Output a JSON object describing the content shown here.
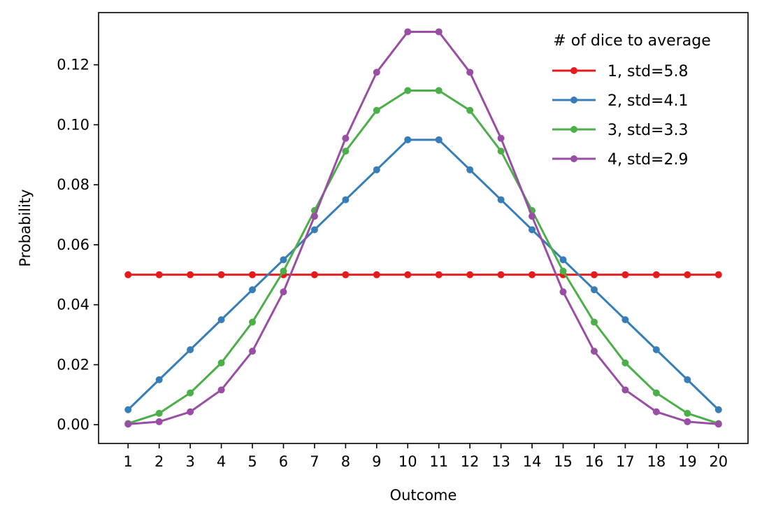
{
  "chart_data": {
    "type": "line",
    "title": "",
    "xlabel": "Outcome",
    "ylabel": "Probability",
    "x": [
      1,
      2,
      3,
      4,
      5,
      6,
      7,
      8,
      9,
      10,
      11,
      12,
      13,
      14,
      15,
      16,
      17,
      18,
      19,
      20
    ],
    "xlim": [
      0.05,
      20.95
    ],
    "ylim": [
      -0.00625,
      0.1374
    ],
    "yticks": [
      0.0,
      0.02,
      0.04,
      0.06,
      0.08,
      0.1,
      0.12
    ],
    "ytick_labels": [
      "0.00",
      "0.02",
      "0.04",
      "0.06",
      "0.08",
      "0.10",
      "0.12"
    ],
    "grid": false,
    "legend": {
      "title": "# of dice to average",
      "placement": "top-right",
      "frame": false
    },
    "series": [
      {
        "name": "1, std=5.8",
        "color": "#e41a1c",
        "values": [
          0.05,
          0.05,
          0.05,
          0.05,
          0.05,
          0.05,
          0.05,
          0.05,
          0.05,
          0.05,
          0.05,
          0.05,
          0.05,
          0.05,
          0.05,
          0.05,
          0.05,
          0.05,
          0.05,
          0.05
        ]
      },
      {
        "name": "2, std=4.1",
        "color": "#377eb8",
        "values": [
          0.005,
          0.015,
          0.025,
          0.035,
          0.045,
          0.055,
          0.065,
          0.075,
          0.085,
          0.095,
          0.095,
          0.085,
          0.075,
          0.065,
          0.055,
          0.045,
          0.035,
          0.025,
          0.015,
          0.005
        ]
      },
      {
        "name": "3, std=3.3",
        "color": "#4daf4a",
        "values": [
          0.0004,
          0.0038,
          0.0106,
          0.0206,
          0.0342,
          0.0512,
          0.0714,
          0.0912,
          0.1048,
          0.1114,
          0.1114,
          0.1048,
          0.0912,
          0.0714,
          0.0512,
          0.0342,
          0.0206,
          0.0106,
          0.0038,
          0.0004
        ]
      },
      {
        "name": "4, std=2.9",
        "color": "#984ea3",
        "values": [
          0.0002,
          0.001,
          0.0043,
          0.0116,
          0.0245,
          0.0443,
          0.0695,
          0.0955,
          0.1175,
          0.131,
          0.131,
          0.1175,
          0.0955,
          0.0695,
          0.0443,
          0.0245,
          0.0116,
          0.0043,
          0.001,
          0.0002
        ]
      }
    ]
  }
}
